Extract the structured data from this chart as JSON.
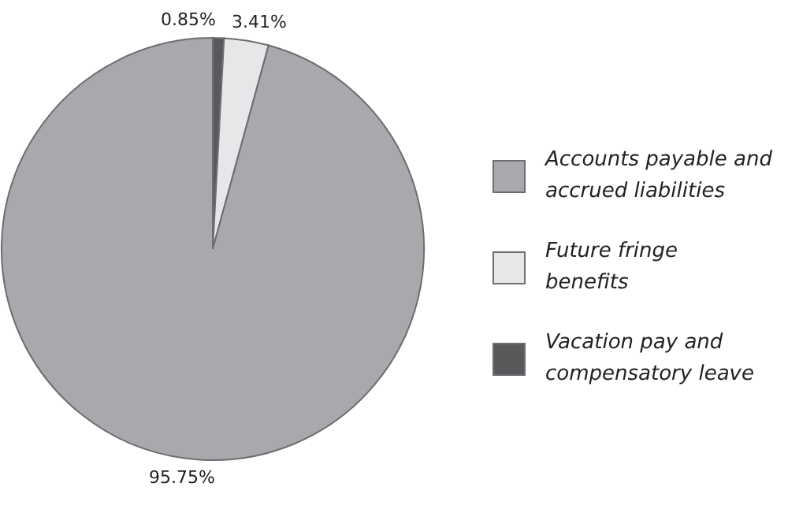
{
  "chart_data": {
    "type": "pie",
    "categories": [
      "Accounts payable and accrued liabilities",
      "Future fringe benefits",
      "Vacation pay and compensatory leave"
    ],
    "values": [
      95.75,
      3.41,
      0.85
    ],
    "colors": [
      "#a7a9ac",
      "#e6e7e8",
      "#58595b"
    ],
    "value_labels": [
      "95.75%",
      "3.41%",
      "0.85%"
    ],
    "legend": "right"
  }
}
